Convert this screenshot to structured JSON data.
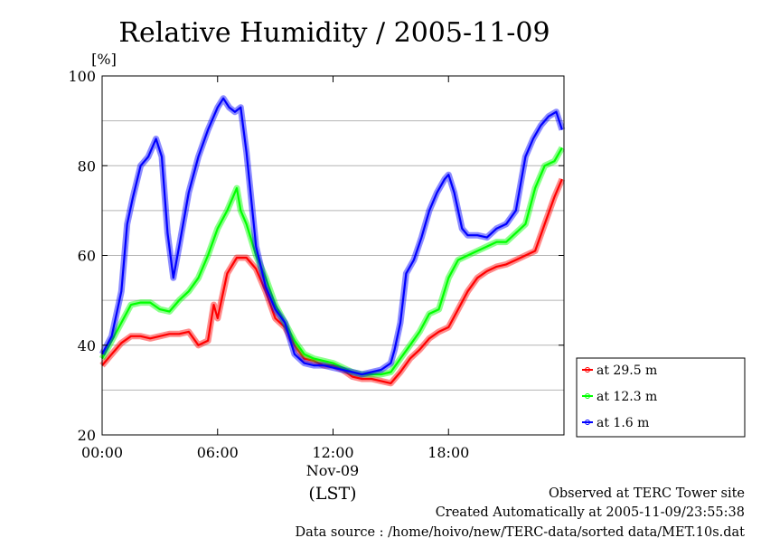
{
  "chart_data": {
    "type": "line",
    "title": "Relative Humidity / 2005-11-09",
    "ylabel": "[%]",
    "ylim": [
      20,
      100
    ],
    "yticks": [
      "20",
      "40",
      "60",
      "80",
      "100"
    ],
    "xlim": [
      0,
      24
    ],
    "xticks": [
      {
        "x": 0,
        "label": "00:00"
      },
      {
        "x": 6,
        "label": "06:00"
      },
      {
        "x": 12,
        "label": "12:00"
      },
      {
        "x": 18,
        "label": "18:00"
      }
    ],
    "date_label": "Nov-09",
    "xlabel": "(LST)",
    "grid": true,
    "legend_position": "right",
    "series": [
      {
        "name": "at 29.5 m",
        "color": "#ff0000",
        "x": [
          0,
          0.5,
          1,
          1.5,
          2,
          2.5,
          3,
          3.5,
          4,
          4.5,
          5,
          5.5,
          5.8,
          6,
          6.5,
          7,
          7.5,
          8,
          8.5,
          9,
          9.5,
          10,
          10.5,
          11,
          11.5,
          12,
          12.5,
          13,
          13.5,
          14,
          14.5,
          15,
          15.5,
          16,
          16.5,
          17,
          17.5,
          18,
          18.5,
          19,
          19.5,
          20,
          20.5,
          21,
          21.5,
          22,
          22.5,
          23,
          23.5,
          23.9
        ],
        "y": [
          35.5,
          38,
          40.5,
          42,
          42,
          41.5,
          42,
          42.5,
          42.5,
          43,
          40,
          41,
          49,
          46,
          56,
          59.5,
          59.5,
          57,
          52,
          46,
          44,
          40,
          37,
          36.5,
          35.5,
          35.5,
          34.5,
          33,
          32.5,
          32.5,
          32,
          31.5,
          34,
          37,
          39,
          41.5,
          43,
          44,
          48,
          52,
          55,
          56.5,
          57.5,
          58,
          59,
          60,
          61,
          67,
          73,
          77
        ]
      },
      {
        "name": "at 12.3 m",
        "color": "#00ff00",
        "x": [
          0,
          0.5,
          1,
          1.5,
          2,
          2.5,
          3,
          3.5,
          4,
          4.5,
          5,
          5.5,
          6,
          6.5,
          7,
          7.2,
          7.5,
          8,
          8.5,
          9,
          9.5,
          10,
          10.5,
          11,
          11.5,
          12,
          12.5,
          13,
          13.5,
          14,
          14.5,
          15,
          15.5,
          16,
          16.5,
          17,
          17.5,
          18,
          18.5,
          19,
          19.5,
          20,
          20.5,
          21,
          21.5,
          22,
          22.5,
          23,
          23.5,
          23.9
        ],
        "y": [
          37,
          41,
          45,
          49,
          49.5,
          49.5,
          48,
          47.5,
          50,
          52,
          55,
          60,
          66,
          70,
          75,
          70,
          67,
          60,
          55,
          49,
          45,
          41,
          38,
          37,
          36.5,
          36,
          35,
          34,
          33.5,
          33.5,
          33.5,
          34,
          37,
          40,
          43,
          47,
          48,
          55,
          59,
          60,
          61,
          62,
          63,
          63,
          65,
          67,
          75,
          80,
          81,
          84
        ]
      },
      {
        "name": "at 1.6 m",
        "color": "#0000ff",
        "x": [
          0,
          0.5,
          1,
          1.3,
          1.6,
          2,
          2.4,
          2.8,
          3.1,
          3.4,
          3.7,
          4,
          4.5,
          5,
          5.5,
          6,
          6.3,
          6.6,
          6.9,
          7.2,
          7.5,
          8,
          8.5,
          9,
          9.5,
          10,
          10.5,
          11,
          11.5,
          12,
          12.5,
          13,
          13.5,
          14,
          14.5,
          15,
          15.2,
          15.5,
          15.8,
          16.2,
          16.6,
          17,
          17.4,
          17.8,
          18,
          18.3,
          18.7,
          19,
          19.5,
          20,
          20.5,
          21,
          21.5,
          22,
          22.4,
          22.8,
          23.2,
          23.6,
          23.9
        ],
        "y": [
          38,
          42,
          52,
          67,
          73,
          80,
          82,
          86,
          82,
          65,
          55,
          62,
          74,
          82,
          88,
          93,
          95,
          93,
          92,
          93,
          83,
          62,
          53,
          48,
          45,
          38,
          36,
          35.5,
          35.5,
          35,
          34.5,
          34,
          33.5,
          34,
          34.5,
          36,
          39,
          45,
          56,
          59,
          64,
          70,
          74,
          77,
          78,
          74,
          66,
          64.5,
          64.5,
          64,
          66,
          67,
          70,
          82,
          86,
          89,
          91,
          92,
          88
        ]
      }
    ]
  },
  "footer": {
    "line1": "Observed at TERC Tower site",
    "line2": "Created Automatically at 2005-11-09/23:55:38",
    "line3": "Data source : /home/hoivo/new/TERC-data/sorted  data/MET.10s.dat"
  },
  "colors": {
    "grid": "#b4b4b4",
    "axis": "#000000"
  }
}
